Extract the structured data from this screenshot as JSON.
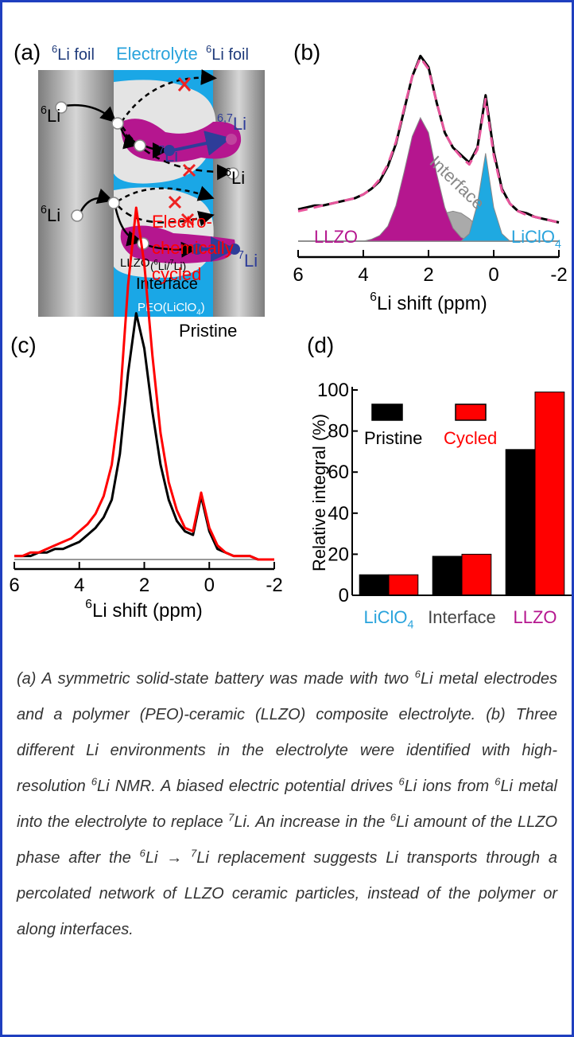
{
  "diagram": {
    "panel_label": "(a)",
    "labels": [
      {
        "text": [
          {
            "sup": "6"
          },
          "Li foil"
        ],
        "color": "#1e3a7a"
      },
      {
        "text": "Electrolyte",
        "color": "#29a3dc"
      },
      {
        "text": [
          {
            "sup": "6"
          },
          "Li foil"
        ],
        "color": "#1e3a7a"
      },
      {
        "text": [
          {
            "sup": "6"
          },
          "Li"
        ],
        "color": "#000000"
      },
      {
        "text": [
          {
            "sup": "7"
          },
          "Li"
        ],
        "color": "#2e3d99"
      },
      {
        "text": [
          {
            "sup": "6,7"
          },
          "Li"
        ],
        "color": "#2e3d99"
      },
      {
        "text": [
          {
            "sup": "6"
          },
          "Li"
        ],
        "color": "#000000"
      },
      {
        "text": [
          {
            "sup": "6"
          },
          "Li"
        ],
        "color": "#000000"
      },
      {
        "text": "LLZO",
        "color": "#000000"
      },
      {
        "text": [
          "(",
          {
            "sup": "6"
          },
          "Li/",
          {
            "sup": "7"
          },
          "Li)"
        ],
        "color": "#000000"
      },
      {
        "text": [
          {
            "sup": "7"
          },
          "Li"
        ],
        "color": "#2e3d99"
      },
      {
        "text": "Interface",
        "color": "#000000"
      },
      {
        "text": [
          "PEO(LiClO",
          {
            "sub": "4"
          },
          ")"
        ],
        "color": "#ffffff"
      }
    ]
  },
  "chart_data": [
    {
      "type": "line",
      "panel_label": "(b)",
      "x": [
        6,
        5.75,
        5.5,
        5.25,
        5,
        4.75,
        4.5,
        4.25,
        4,
        3.75,
        3.5,
        3.25,
        3,
        2.75,
        2.5,
        2.25,
        2,
        1.75,
        1.5,
        1.25,
        1,
        0.75,
        0.5,
        0.25,
        0,
        -0.25,
        -0.5,
        -0.75,
        -1,
        -1.25,
        -1.5,
        -1.75,
        -2
      ],
      "xlim": [
        6,
        -2
      ],
      "xticks": [
        6,
        4,
        2,
        0,
        -2
      ],
      "xlabel": [
        {
          "sup": "6"
        },
        "Li shift (ppm)"
      ],
      "ylim": [
        0,
        100
      ],
      "series": [
        {
          "color": "#aaaaaa",
          "style": "filled",
          "values": [
            0,
            0,
            0,
            0,
            0,
            0,
            0,
            0,
            0,
            0,
            0,
            0,
            0,
            1,
            3,
            5,
            9,
            12,
            15,
            16,
            15,
            12,
            8,
            5,
            3,
            1,
            0,
            0,
            0,
            0,
            0,
            0,
            0
          ]
        },
        {
          "color": "#b5168f",
          "style": "filled",
          "values": [
            0,
            0,
            0,
            0,
            0,
            0,
            0,
            0,
            0,
            1,
            3,
            8,
            19,
            37,
            56,
            66,
            58,
            36,
            18,
            7,
            2,
            0,
            0,
            0,
            0,
            0,
            0,
            0,
            0,
            0,
            0,
            0,
            0
          ]
        },
        {
          "color": "#1fa9e1",
          "style": "filled",
          "values": [
            0,
            0,
            0,
            0,
            0,
            0,
            0,
            0,
            0,
            0,
            0,
            0,
            0,
            0,
            0,
            0,
            0,
            0,
            0,
            0,
            0,
            4,
            20,
            47,
            18,
            4,
            0,
            0,
            0,
            0,
            0,
            0,
            0
          ]
        },
        {
          "color": "#000000",
          "style": "solid",
          "values": [
            17,
            18,
            19,
            19,
            20,
            21,
            22,
            23,
            25,
            28,
            32,
            40,
            52,
            70,
            88,
            99,
            93,
            74,
            58,
            50,
            46,
            42,
            50,
            78,
            48,
            28,
            20,
            16,
            15,
            13,
            12,
            11,
            10
          ]
        },
        {
          "color": "#e8559c",
          "style": "dashed",
          "values": [
            16,
            17,
            18,
            19,
            20,
            21,
            22,
            23,
            25,
            28,
            33,
            41,
            53,
            71,
            88,
            98,
            92,
            74,
            58,
            50,
            45,
            41,
            49,
            76,
            46,
            27,
            20,
            16,
            14,
            13,
            12,
            11,
            10
          ]
        }
      ],
      "annotations": [
        {
          "text": "LLZO",
          "color": "#b5168f"
        },
        {
          "text": "Interface",
          "color": "#888888"
        },
        {
          "text": [
            "LiClO",
            {
              "sub": "4"
            }
          ],
          "color": "#29a3dc"
        }
      ]
    },
    {
      "type": "line",
      "panel_label": "(c)",
      "x": [
        6,
        5.75,
        5.5,
        5.25,
        5,
        4.75,
        4.5,
        4.25,
        4,
        3.75,
        3.5,
        3.25,
        3,
        2.75,
        2.5,
        2.25,
        2,
        1.75,
        1.5,
        1.25,
        1,
        0.75,
        0.5,
        0.25,
        0,
        -0.25,
        -0.5,
        -0.75,
        -1,
        -1.25,
        -1.5,
        -1.75,
        -2
      ],
      "xlim": [
        6,
        -2
      ],
      "xticks": [
        6,
        4,
        2,
        0,
        -2
      ],
      "xlabel": [
        {
          "sup": "6"
        },
        "Li shift (ppm)"
      ],
      "ylim": [
        0,
        100
      ],
      "series": [
        {
          "color": "#000000",
          "style": "solid",
          "values": [
            1,
            1,
            1,
            2,
            2,
            3,
            3,
            4,
            5,
            7,
            9,
            12,
            17,
            30,
            53,
            70,
            60,
            42,
            27,
            17,
            11,
            8,
            7,
            18,
            8,
            3,
            2,
            1,
            1,
            1,
            0,
            0,
            0
          ]
        },
        {
          "color": "#ff0000",
          "style": "solid",
          "values": [
            1,
            1,
            2,
            2,
            3,
            4,
            5,
            6,
            8,
            10,
            13,
            18,
            27,
            45,
            78,
            100,
            84,
            58,
            36,
            22,
            14,
            9,
            8,
            19,
            9,
            4,
            2,
            1,
            1,
            1,
            0,
            0,
            0
          ]
        }
      ],
      "annotations": [
        {
          "text": "Electro-",
          "color": "#ff0000"
        },
        {
          "text": "chemically",
          "color": "#ff0000"
        },
        {
          "text": "cycled",
          "color": "#ff0000"
        },
        {
          "text": "Pristine",
          "color": "#000000"
        }
      ]
    },
    {
      "type": "bar",
      "panel_label": "(d)",
      "categories": [
        [
          "LiClO",
          {
            "sub": "4"
          }
        ],
        "Interface",
        "LLZO"
      ],
      "category_colors": [
        "#29a3dc",
        "#444444",
        "#b5168f"
      ],
      "series": [
        {
          "name": "Pristine",
          "color": "#000000",
          "values": [
            10,
            19,
            71
          ]
        },
        {
          "name": "Cycled",
          "color": "#ff0000",
          "values": [
            10,
            20,
            99
          ]
        }
      ],
      "ylim": [
        0,
        100
      ],
      "yticks": [
        0,
        20,
        40,
        60,
        80,
        100
      ],
      "ylabel": "Relative integral (%)",
      "legend": "upper left"
    }
  ],
  "caption": [
    "(a) A symmetric solid-state battery was made with two ",
    {
      "sup": "6"
    },
    "Li metal electrodes and a polymer (PEO)-ceramic (LLZO) composite electrolyte. (b) Three different Li environments in the electrolyte were identified with high-resolution ",
    {
      "sup": "6"
    },
    "Li NMR. A biased electric potential drives ",
    {
      "sup": "6"
    },
    "Li ions from ",
    {
      "sup": "6"
    },
    "Li metal into the electrolyte to replace ",
    {
      "sup": "7"
    },
    "Li.  An increase in the ",
    {
      "sup": "6"
    },
    "Li amount of the LLZO phase after the ",
    {
      "sup": "6"
    },
    "Li → ",
    {
      "sup": "7"
    },
    "Li replacement suggests Li transports through a percolated network of LLZO ceramic particles, instead of the polymer or along interfaces."
  ]
}
